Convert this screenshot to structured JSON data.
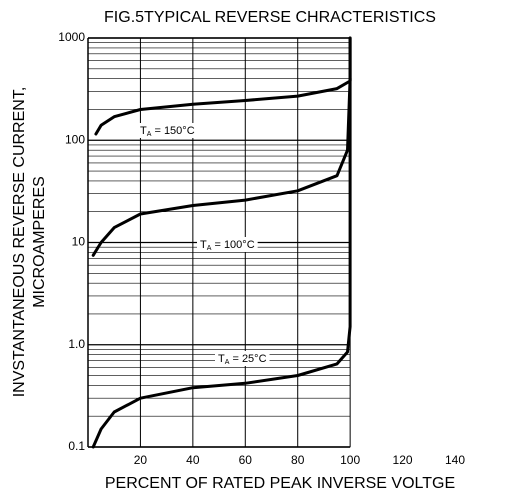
{
  "chart_data": {
    "type": "line",
    "title": "FIG.5TYPICAL REVERSE CHRACTERISTICS",
    "ylabel": [
      "INVSTANTANEOUS REVERSE CURRENT,",
      "MICROAMPERES"
    ],
    "xlabel": "PERCENT OF RATED PEAK INVERSE VOLTGE",
    "xlim": [
      0,
      140
    ],
    "xticks": [
      20,
      40,
      60,
      80,
      100,
      120,
      140
    ],
    "ylim": [
      0.1,
      1000
    ],
    "yticks": [
      0.1,
      {
        "value": 1,
        "label": "1.0"
      },
      10,
      100,
      1000
    ],
    "log_y": true,
    "grid": true,
    "color": "#000000",
    "series": [
      {
        "label": [
          "T",
          "A",
          " = 150°C"
        ],
        "x": [
          3,
          5,
          10,
          20,
          40,
          60,
          80,
          95,
          100,
          100
        ],
        "values": [
          115,
          140,
          170,
          200,
          225,
          245,
          270,
          320,
          380,
          1000
        ]
      },
      {
        "label": [
          "T",
          "A",
          " = 100°C"
        ],
        "x": [
          2,
          5,
          10,
          20,
          40,
          60,
          80,
          95,
          99,
          100
        ],
        "values": [
          7.5,
          10,
          14,
          19,
          23,
          26,
          32,
          45,
          80,
          400
        ]
      },
      {
        "label": [
          "T",
          "A",
          " = 25°C"
        ],
        "x": [
          2,
          5,
          10,
          20,
          40,
          60,
          80,
          95,
          99,
          100,
          100
        ],
        "values": [
          0.1,
          0.15,
          0.22,
          0.3,
          0.38,
          0.42,
          0.5,
          0.65,
          0.85,
          1.5,
          1000
        ]
      }
    ]
  }
}
